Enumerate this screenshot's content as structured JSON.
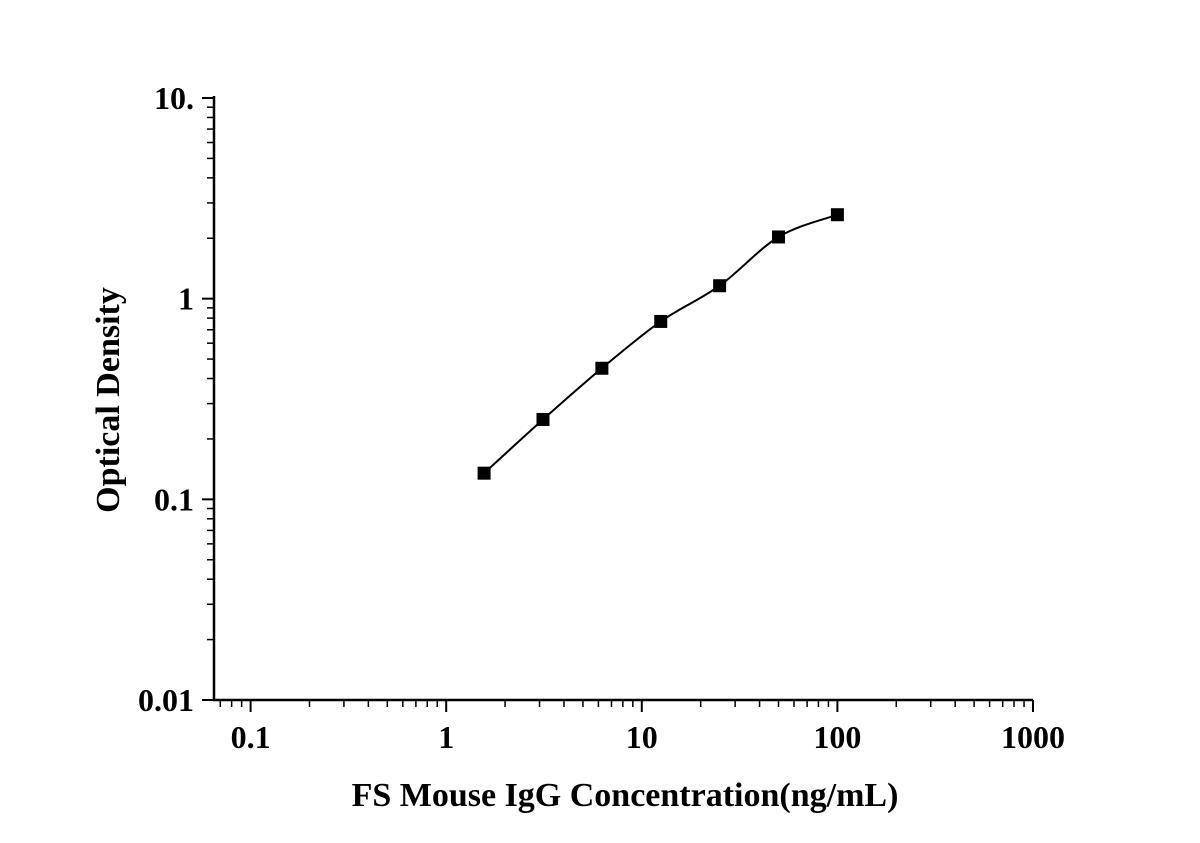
{
  "chart_data": {
    "type": "scatter",
    "title": "",
    "xlabel": "FS Mouse IgG Concentration(ng/mL)",
    "ylabel": "Optical Density",
    "x_scale": "log",
    "y_scale": "log",
    "xlim": [
      0.065,
      1000
    ],
    "ylim": [
      0.01,
      10
    ],
    "x_ticks": [
      0.1,
      1,
      10,
      100,
      1000
    ],
    "x_tick_labels": [
      "0.1",
      "1",
      "10",
      "100",
      "1000"
    ],
    "y_ticks": [
      0.01,
      0.1,
      1,
      10
    ],
    "y_tick_labels": [
      "0.01",
      "0.1",
      "1",
      "10."
    ],
    "grid": false,
    "legend": "none",
    "colors": {
      "marker": "#000000",
      "line": "#000000",
      "axis": "#000000"
    },
    "series": [
      {
        "marker": "square",
        "fit_line": true,
        "x": [
          1.5625,
          3.125,
          6.25,
          12.5,
          25,
          50,
          100
        ],
        "y": [
          0.135,
          0.25,
          0.45,
          0.77,
          1.16,
          2.03,
          2.62
        ]
      }
    ]
  }
}
